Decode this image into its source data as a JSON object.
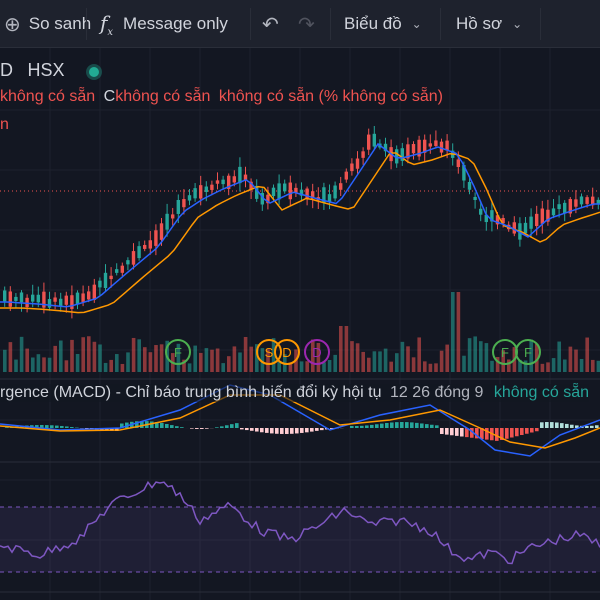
{
  "toolbar": {
    "compare_label": "So sanh",
    "fx_label": "Message only",
    "chart_label": "Biểu đồ",
    "profile_label": "Hồ sơ"
  },
  "legend": {
    "symbol_partial": "D",
    "exchange": "HSX",
    "ohlc_text_1": "không có sẵn",
    "ohlc_prefix_c": "C",
    "ohlc_text_2": "không có sẵn",
    "ohlc_text_3": "không có sẵn",
    "ohlc_paren": "(% không có sẵn)",
    "line3_partial": "n"
  },
  "macd": {
    "title_partial": "rgence (MACD) - Chỉ báo trung bình biến đổi kỳ hội tụ",
    "params": "12 26 đóng 9",
    "value": "không có sẵn"
  },
  "event_markers": [
    "F",
    "S",
    "D",
    "D",
    "F",
    "F"
  ],
  "colors": {
    "up": "#26a69a",
    "down": "#ef5350",
    "ma_fast": "#2962ff",
    "ma_slow": "#ff9800",
    "rsi": "#7e57c2",
    "dividend_marker": "#ff9800",
    "financial_marker": "#4caf50",
    "split_marker": "#9c27b0"
  }
}
